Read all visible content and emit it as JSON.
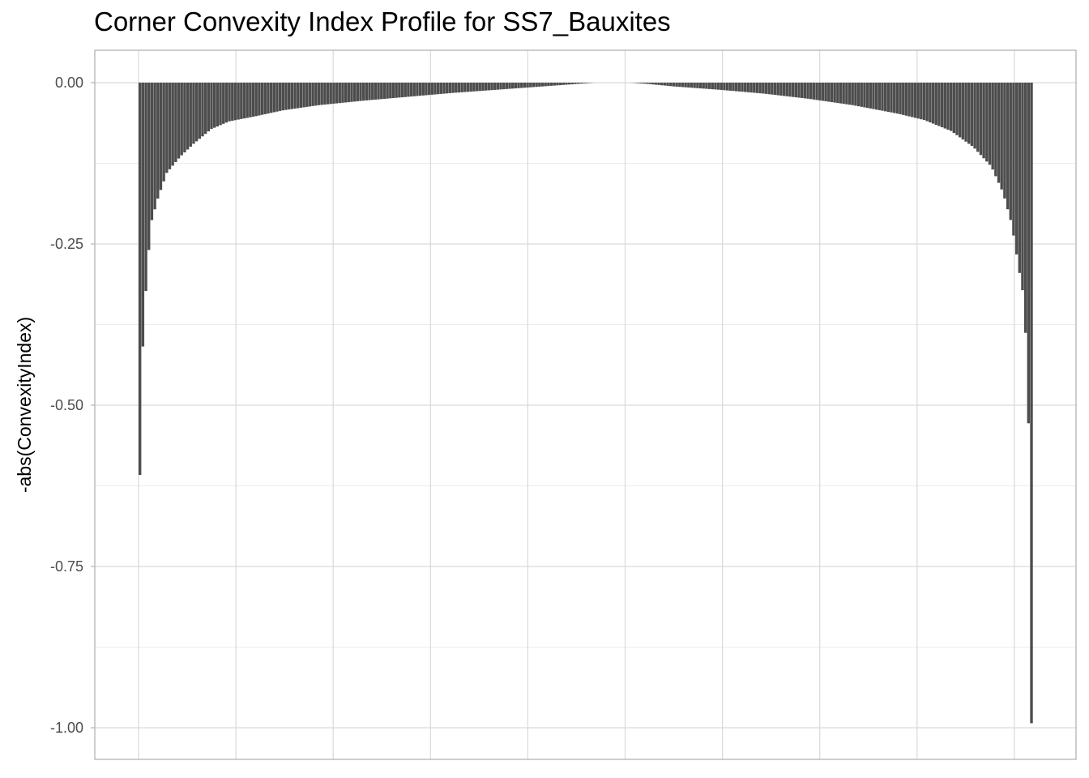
{
  "chart_data": {
    "type": "bar",
    "title": "Corner Convexity Index Profile for SS7_Bauxites",
    "xlabel": "",
    "ylabel": "-abs(ConvexityIndex)",
    "ylim": [
      -1.0,
      0.0
    ],
    "y_ticks": [
      {
        "value": 0.0,
        "label": "0.00"
      },
      {
        "value": -0.25,
        "label": "-0.25"
      },
      {
        "value": -0.5,
        "label": "-0.50"
      },
      {
        "value": -0.75,
        "label": "-0.75"
      },
      {
        "value": -1.0,
        "label": "-1.00"
      }
    ],
    "x_tick_labels_shown": false,
    "grid": true,
    "bar_color": "#4d4d4d",
    "n_bars": 300,
    "profile_knots": [
      [
        0.0,
        -0.608
      ],
      [
        0.004,
        -0.37
      ],
      [
        0.008,
        -0.3
      ],
      [
        0.012,
        -0.22
      ],
      [
        0.02,
        -0.18
      ],
      [
        0.03,
        -0.14
      ],
      [
        0.045,
        -0.115
      ],
      [
        0.06,
        -0.095
      ],
      [
        0.08,
        -0.072
      ],
      [
        0.1,
        -0.06
      ],
      [
        0.13,
        -0.052
      ],
      [
        0.16,
        -0.043
      ],
      [
        0.2,
        -0.035
      ],
      [
        0.25,
        -0.028
      ],
      [
        0.3,
        -0.022
      ],
      [
        0.35,
        -0.016
      ],
      [
        0.4,
        -0.011
      ],
      [
        0.45,
        -0.006
      ],
      [
        0.49,
        -0.002
      ],
      [
        0.51,
        0.0
      ],
      [
        0.55,
        0.0
      ],
      [
        0.57,
        -0.002
      ],
      [
        0.6,
        -0.006
      ],
      [
        0.65,
        -0.011
      ],
      [
        0.7,
        -0.017
      ],
      [
        0.75,
        -0.025
      ],
      [
        0.8,
        -0.035
      ],
      [
        0.85,
        -0.048
      ],
      [
        0.88,
        -0.058
      ],
      [
        0.91,
        -0.075
      ],
      [
        0.935,
        -0.1
      ],
      [
        0.955,
        -0.13
      ],
      [
        0.968,
        -0.17
      ],
      [
        0.978,
        -0.22
      ],
      [
        0.986,
        -0.29
      ],
      [
        0.991,
        -0.33
      ],
      [
        0.995,
        -0.43
      ],
      [
        0.9975,
        -0.578
      ],
      [
        1.0,
        -0.993
      ]
    ]
  }
}
